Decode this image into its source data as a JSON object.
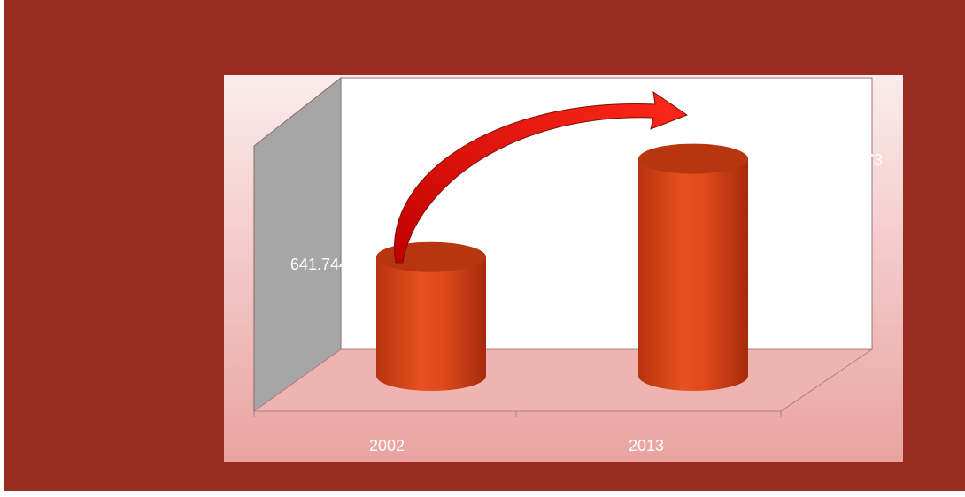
{
  "chart_data": {
    "type": "cylinder",
    "categories": [
      "2002",
      "2013"
    ],
    "values": [
      641.744,
      1173
    ],
    "color": "#e04a1c",
    "ylim": [
      0,
      1300
    ]
  }
}
